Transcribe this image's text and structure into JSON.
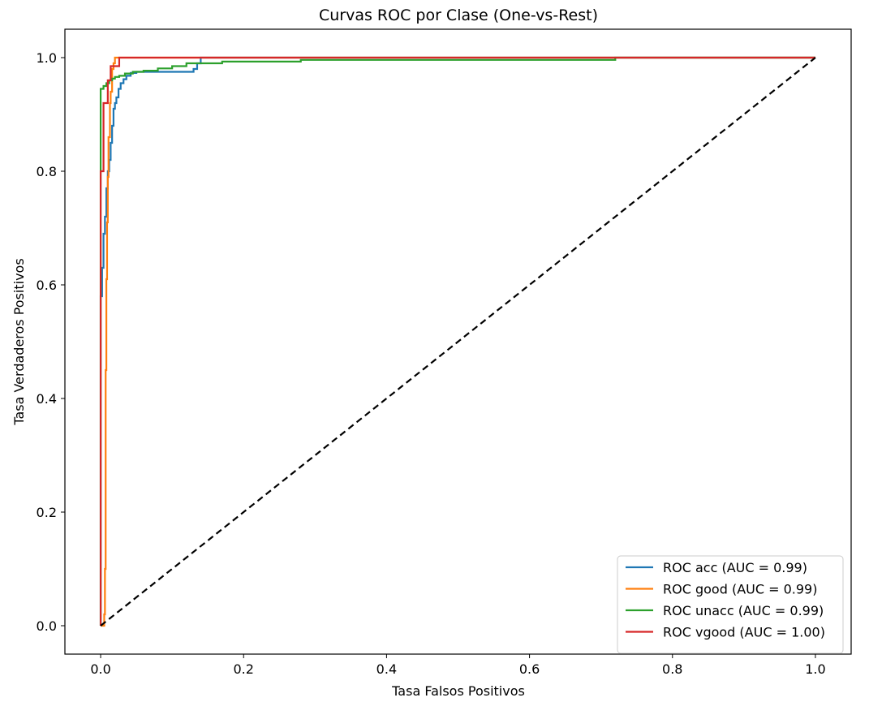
{
  "chart_data": {
    "type": "line",
    "title": "Curvas ROC por Clase (One-vs-Rest)",
    "xlabel": "Tasa Falsos Positivos",
    "ylabel": "Tasa Verdaderos Positivos",
    "xlim": [
      -0.05,
      1.05
    ],
    "ylim": [
      -0.05,
      1.05
    ],
    "xticks": [
      0.0,
      0.2,
      0.4,
      0.6,
      0.8,
      1.0
    ],
    "yticks": [
      0.0,
      0.2,
      0.4,
      0.6,
      0.8,
      1.0
    ],
    "xtick_labels": [
      "0.0",
      "0.2",
      "0.4",
      "0.6",
      "0.8",
      "1.0"
    ],
    "ytick_labels": [
      "0.0",
      "0.2",
      "0.4",
      "0.6",
      "0.8",
      "1.0"
    ],
    "grid": false,
    "legend_position": "lower-right",
    "series": [
      {
        "name": "ROC acc (AUC = 0.99)",
        "color": "#1f77b4",
        "x": [
          0.0,
          0.0,
          0.002,
          0.002,
          0.004,
          0.004,
          0.006,
          0.006,
          0.008,
          0.008,
          0.01,
          0.01,
          0.012,
          0.012,
          0.014,
          0.014,
          0.016,
          0.016,
          0.018,
          0.018,
          0.02,
          0.02,
          0.022,
          0.022,
          0.025,
          0.025,
          0.028,
          0.028,
          0.032,
          0.032,
          0.036,
          0.036,
          0.042,
          0.042,
          0.05,
          0.05,
          0.13,
          0.13,
          0.135,
          0.135,
          0.14,
          0.14,
          1.0
        ],
        "y": [
          0.0,
          0.58,
          0.58,
          0.63,
          0.63,
          0.69,
          0.69,
          0.72,
          0.72,
          0.77,
          0.77,
          0.8,
          0.8,
          0.82,
          0.82,
          0.85,
          0.85,
          0.88,
          0.88,
          0.91,
          0.91,
          0.92,
          0.92,
          0.93,
          0.93,
          0.945,
          0.945,
          0.955,
          0.955,
          0.962,
          0.962,
          0.968,
          0.968,
          0.973,
          0.973,
          0.975,
          0.975,
          0.98,
          0.98,
          0.99,
          0.99,
          1.0,
          1.0
        ]
      },
      {
        "name": "ROC good (AUC = 0.99)",
        "color": "#ff7f0e",
        "x": [
          0.0,
          0.005,
          0.005,
          0.006,
          0.006,
          0.007,
          0.007,
          0.008,
          0.008,
          0.009,
          0.009,
          0.01,
          0.01,
          0.011,
          0.011,
          0.013,
          0.013,
          0.014,
          0.014,
          0.016,
          0.016,
          0.018,
          0.018,
          0.02,
          0.02,
          0.78,
          0.78,
          1.0
        ],
        "y": [
          0.0,
          0.0,
          0.02,
          0.02,
          0.1,
          0.1,
          0.45,
          0.45,
          0.61,
          0.61,
          0.71,
          0.71,
          0.79,
          0.79,
          0.86,
          0.86,
          0.92,
          0.92,
          0.94,
          0.94,
          0.98,
          0.98,
          0.99,
          0.99,
          1.0,
          1.0,
          1.0,
          1.0
        ]
      },
      {
        "name": "ROC unacc (AUC = 0.99)",
        "color": "#2ca02c",
        "x": [
          0.0,
          0.0,
          0.004,
          0.004,
          0.008,
          0.008,
          0.012,
          0.012,
          0.016,
          0.016,
          0.02,
          0.02,
          0.026,
          0.026,
          0.034,
          0.034,
          0.045,
          0.045,
          0.06,
          0.06,
          0.08,
          0.08,
          0.1,
          0.1,
          0.12,
          0.12,
          0.17,
          0.17,
          0.28,
          0.28,
          0.72,
          0.72,
          1.0
        ],
        "y": [
          0.0,
          0.945,
          0.945,
          0.95,
          0.95,
          0.955,
          0.955,
          0.96,
          0.96,
          0.963,
          0.963,
          0.966,
          0.966,
          0.968,
          0.968,
          0.972,
          0.972,
          0.975,
          0.975,
          0.977,
          0.977,
          0.981,
          0.981,
          0.985,
          0.985,
          0.99,
          0.99,
          0.993,
          0.993,
          0.996,
          0.996,
          1.0,
          1.0
        ]
      },
      {
        "name": "ROC vgood (AUC = 1.00)",
        "color": "#d62728",
        "x": [
          0.0,
          0.0,
          0.004,
          0.004,
          0.01,
          0.01,
          0.014,
          0.014,
          0.026,
          0.026,
          1.0
        ],
        "y": [
          0.0,
          0.8,
          0.8,
          0.92,
          0.92,
          0.96,
          0.96,
          0.985,
          0.985,
          1.0,
          1.0
        ]
      },
      {
        "name": "",
        "color": "#000000",
        "dashed": true,
        "x": [
          0.0,
          1.0
        ],
        "y": [
          0.0,
          1.0
        ]
      }
    ]
  }
}
